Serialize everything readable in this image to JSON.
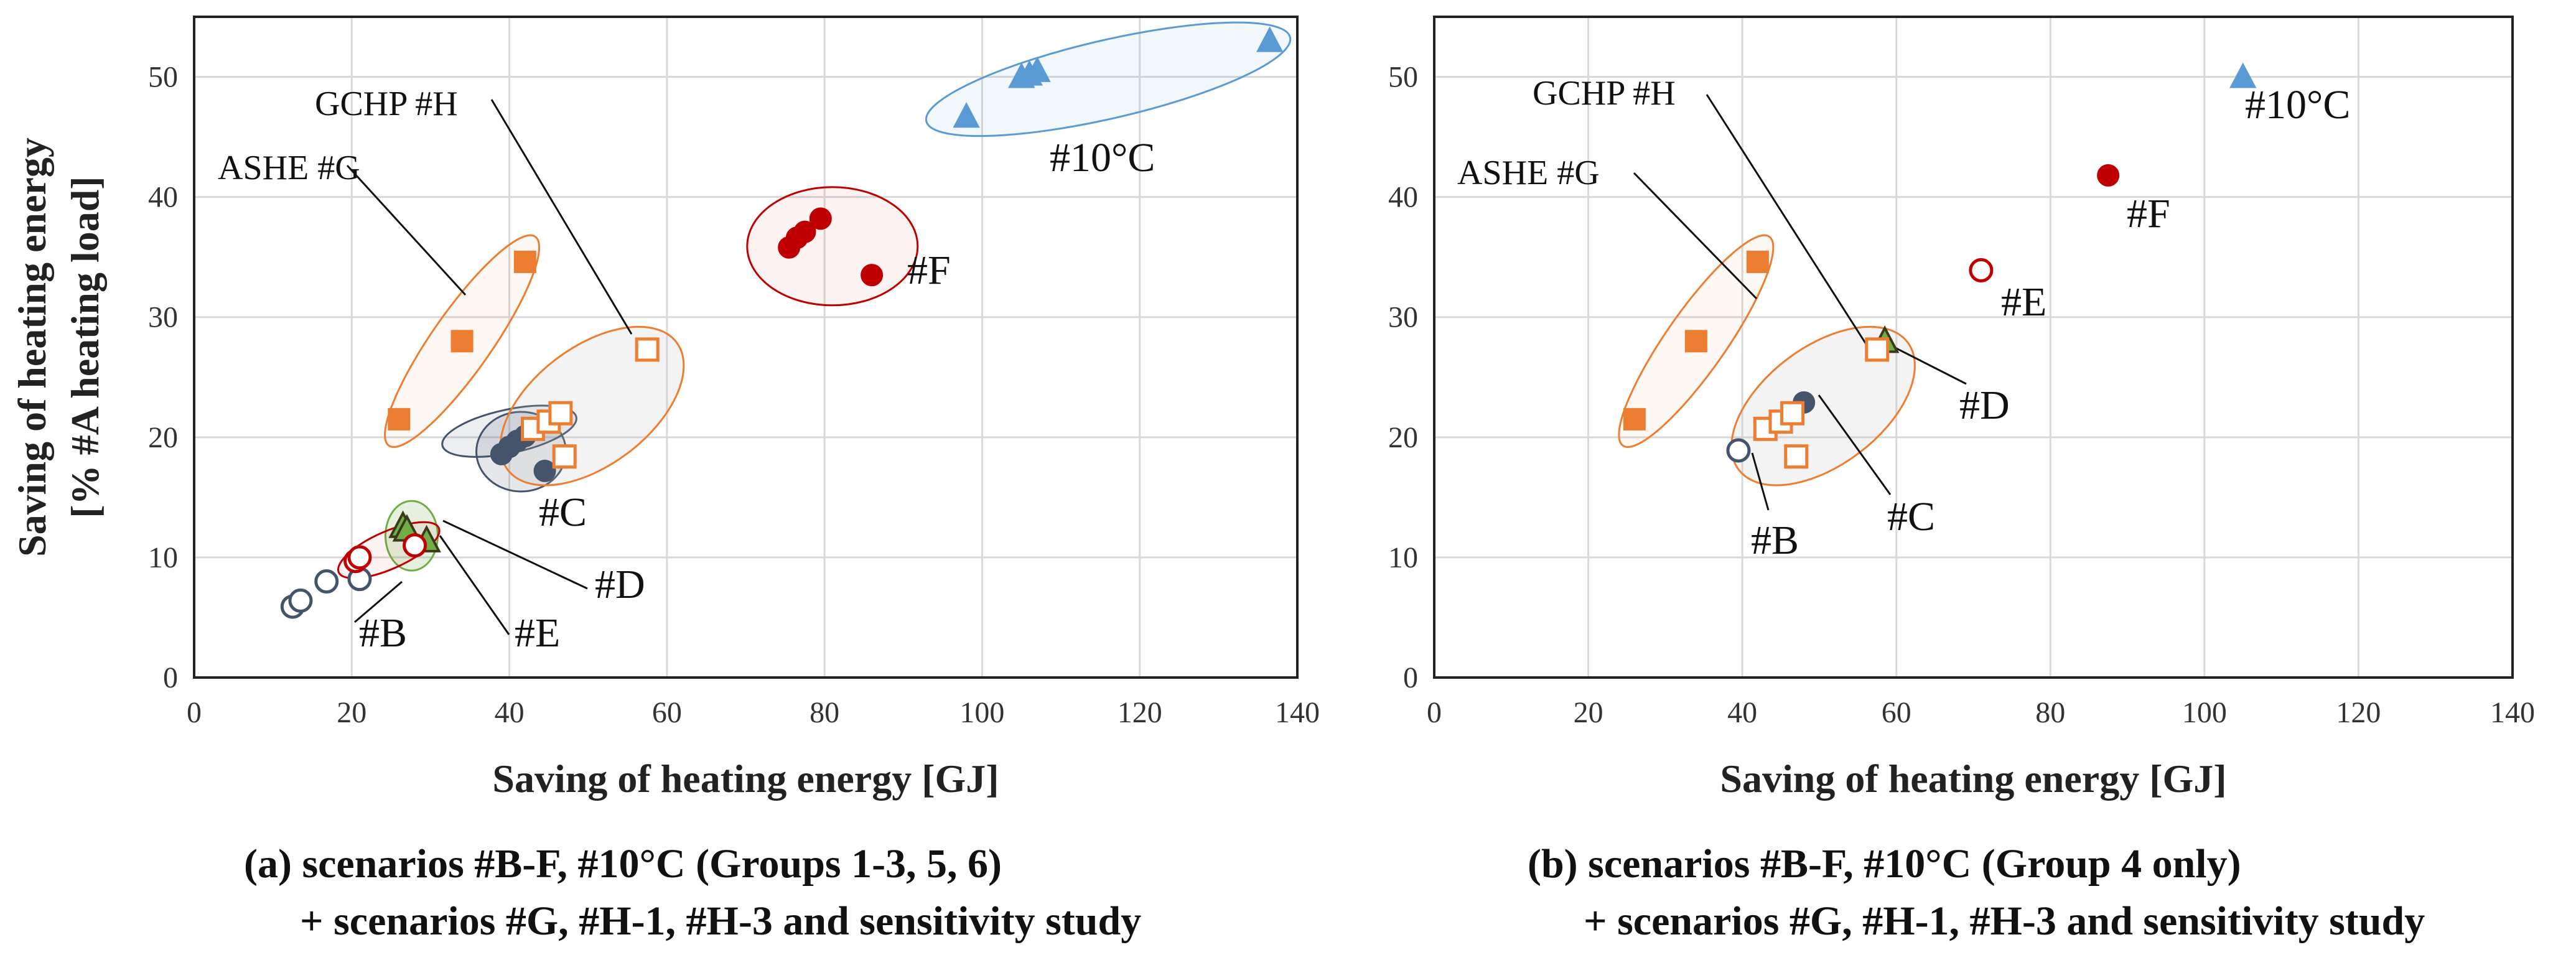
{
  "chart_data": [
    {
      "id": "a",
      "type": "scatter",
      "xlabel": "Saving of heating energy [GJ]",
      "ylabel_line1": "Saving of heating energy",
      "ylabel_line2": "[% #A heating load]",
      "xlim": [
        0,
        140
      ],
      "ylim": [
        0,
        55
      ],
      "xticks": [
        "0",
        "20",
        "40",
        "60",
        "80",
        "100",
        "120",
        "140"
      ],
      "yticks": [
        "0",
        "10",
        "20",
        "30",
        "40",
        "50"
      ],
      "grid": true,
      "caption_line1": "(a)     scenarios #B-F, #10°C     (Groups 1-3, 5, 6)",
      "caption_line2": "+  scenarios #G, #H-1, #H-3 and sensitivity study",
      "series": [
        {
          "name": "#B",
          "marker": "circle-open",
          "color": "#44546a",
          "points": [
            [
              12.5,
              5.9
            ],
            [
              13.5,
              6.4
            ],
            [
              16.8,
              8.0
            ],
            [
              21.0,
              8.2
            ]
          ]
        },
        {
          "name": "#C",
          "marker": "circle",
          "color": "#44546a",
          "points": [
            [
              39.0,
              18.6
            ],
            [
              40.0,
              19.2
            ],
            [
              41.0,
              19.7
            ],
            [
              42.0,
              20.1
            ],
            [
              44.5,
              17.2
            ]
          ]
        },
        {
          "name": "#D",
          "marker": "triangle",
          "color": "#70ad47",
          "points": [
            [
              26.5,
              12.6
            ],
            [
              27.0,
              12.3
            ],
            [
              29.5,
              11.4
            ]
          ]
        },
        {
          "name": "#E",
          "marker": "circle-open",
          "color": "#c00000",
          "points": [
            [
              20.5,
              9.7
            ],
            [
              21.0,
              10.0
            ],
            [
              28.0,
              11.0
            ]
          ]
        },
        {
          "name": "#F",
          "marker": "circle",
          "color": "#c00000",
          "points": [
            [
              75.5,
              35.8
            ],
            [
              76.5,
              36.6
            ],
            [
              77.5,
              37.1
            ],
            [
              79.5,
              38.2
            ],
            [
              86.0,
              33.5
            ]
          ]
        },
        {
          "name": "#10°C",
          "marker": "triangle",
          "color": "#5b9bd5",
          "points": [
            [
              98.0,
              46.7
            ],
            [
              105.0,
              50.0
            ],
            [
              106.0,
              50.2
            ],
            [
              107.0,
              50.5
            ],
            [
              136.5,
              53.0
            ]
          ]
        },
        {
          "name": "ASHE #G",
          "marker": "square",
          "color": "#ed7d31",
          "points": [
            [
              26.0,
              21.5
            ],
            [
              34.0,
              28.0
            ],
            [
              42.0,
              34.6
            ]
          ]
        },
        {
          "name": "GCHP #H",
          "marker": "square-open",
          "color": "#ed7d31",
          "points": [
            [
              43.0,
              20.7
            ],
            [
              45.0,
              21.3
            ],
            [
              46.5,
              22.0
            ],
            [
              47.0,
              18.4
            ],
            [
              57.5,
              27.3
            ]
          ]
        }
      ],
      "annotations": [
        {
          "text": "GCHP #H"
        },
        {
          "text": "ASHE #G"
        },
        {
          "text": "#10°C"
        },
        {
          "text": "#F"
        },
        {
          "text": "#C"
        },
        {
          "text": "#D"
        },
        {
          "text": "#B"
        },
        {
          "text": "#E"
        }
      ]
    },
    {
      "id": "b",
      "type": "scatter",
      "xlabel": "Saving of heating energy [GJ]",
      "xlim": [
        0,
        140
      ],
      "ylim": [
        0,
        55
      ],
      "xticks": [
        "0",
        "20",
        "40",
        "60",
        "80",
        "100",
        "120",
        "140"
      ],
      "yticks": [
        "0",
        "10",
        "20",
        "30",
        "40",
        "50"
      ],
      "grid": true,
      "caption_line1": "(b)     scenarios #B-F, #10°C     (Group 4 only)",
      "caption_line2": "+  scenarios #G, #H-1, #H-3 and sensitivity study",
      "series": [
        {
          "name": "#B",
          "marker": "circle-open",
          "color": "#44546a",
          "points": [
            [
              39.5,
              18.9
            ]
          ]
        },
        {
          "name": "#C",
          "marker": "circle",
          "color": "#44546a",
          "points": [
            [
              48.0,
              22.9
            ]
          ]
        },
        {
          "name": "#D",
          "marker": "triangle",
          "color": "#70ad47",
          "points": [
            [
              58.5,
              28.0
            ]
          ]
        },
        {
          "name": "#E",
          "marker": "circle-open",
          "color": "#c00000",
          "points": [
            [
              71.0,
              33.9
            ]
          ]
        },
        {
          "name": "#F",
          "marker": "circle",
          "color": "#c00000",
          "points": [
            [
              87.5,
              41.8
            ]
          ]
        },
        {
          "name": "#10°C",
          "marker": "triangle",
          "color": "#5b9bd5",
          "points": [
            [
              105.0,
              50.0
            ]
          ]
        },
        {
          "name": "ASHE #G",
          "marker": "square",
          "color": "#ed7d31",
          "points": [
            [
              26.0,
              21.5
            ],
            [
              34.0,
              28.0
            ],
            [
              42.0,
              34.6
            ]
          ]
        },
        {
          "name": "GCHP #H",
          "marker": "square-open",
          "color": "#ed7d31",
          "points": [
            [
              43.0,
              20.7
            ],
            [
              45.0,
              21.3
            ],
            [
              46.5,
              22.0
            ],
            [
              47.0,
              18.4
            ],
            [
              57.5,
              27.3
            ]
          ]
        }
      ],
      "annotations": [
        {
          "text": "GCHP #H"
        },
        {
          "text": "ASHE #G"
        },
        {
          "text": "#10°C"
        },
        {
          "text": "#F"
        },
        {
          "text": "#E"
        },
        {
          "text": "#D"
        },
        {
          "text": "#C"
        },
        {
          "text": "#B"
        }
      ]
    }
  ]
}
